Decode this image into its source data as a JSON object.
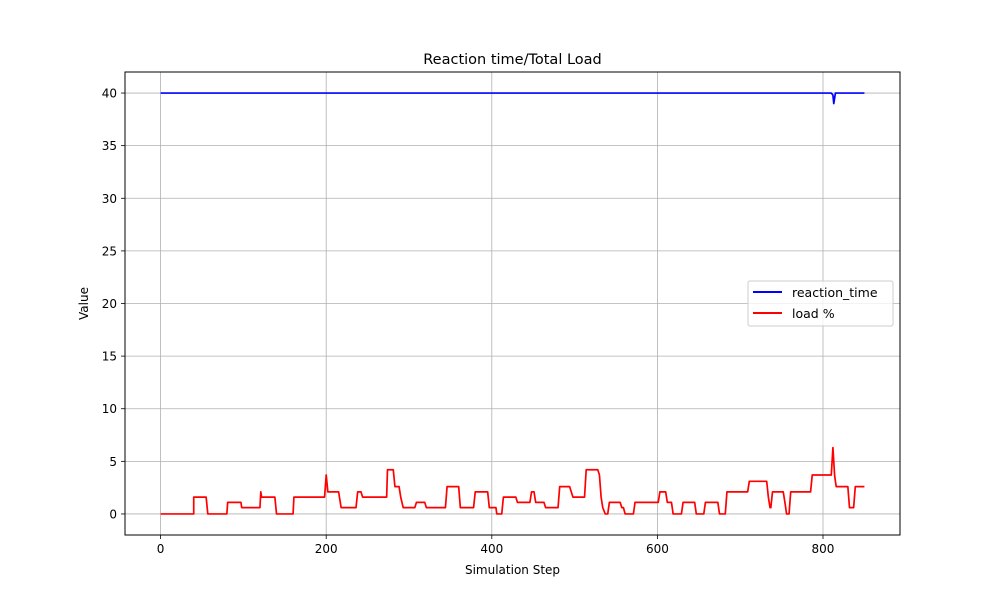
{
  "chart_data": {
    "type": "line",
    "title": "Reaction time/Total Load",
    "xlabel": "Simulation Step",
    "ylabel": "Value",
    "xlim": [
      -43,
      893
    ],
    "ylim": [
      -2,
      42
    ],
    "x_ticks": [
      0,
      200,
      400,
      600,
      800
    ],
    "y_ticks": [
      0,
      5,
      10,
      15,
      20,
      25,
      30,
      35,
      40
    ],
    "grid": true,
    "legend_position": "center-right",
    "series": [
      {
        "name": "reaction_time",
        "color": "#0000ff",
        "points": [
          [
            0,
            40
          ],
          [
            810,
            40
          ],
          [
            812,
            39.8
          ],
          [
            813,
            39
          ],
          [
            814,
            39.5
          ],
          [
            815,
            40
          ],
          [
            850,
            40
          ]
        ]
      },
      {
        "name": "load %",
        "color": "#ff0000",
        "points": [
          [
            0,
            0
          ],
          [
            40,
            0
          ],
          [
            40,
            1.6
          ],
          [
            55,
            1.6
          ],
          [
            57,
            0
          ],
          [
            80,
            0
          ],
          [
            81,
            1.1
          ],
          [
            97,
            1.1
          ],
          [
            98,
            0.6
          ],
          [
            120,
            0.6
          ],
          [
            121,
            2.1
          ],
          [
            122,
            1.6
          ],
          [
            138,
            1.6
          ],
          [
            140,
            0
          ],
          [
            160,
            0
          ],
          [
            161,
            1.6
          ],
          [
            198,
            1.6
          ],
          [
            200,
            3.7
          ],
          [
            202,
            2.1
          ],
          [
            215,
            2.1
          ],
          [
            217,
            1.1
          ],
          [
            218,
            0.6
          ],
          [
            236,
            0.6
          ],
          [
            238,
            2.1
          ],
          [
            242,
            2.1
          ],
          [
            244,
            1.6
          ],
          [
            273,
            1.6
          ],
          [
            274,
            4.2
          ],
          [
            281,
            4.2
          ],
          [
            283,
            2.6
          ],
          [
            288,
            2.6
          ],
          [
            290,
            1.6
          ],
          [
            293,
            0.6
          ],
          [
            307,
            0.6
          ],
          [
            309,
            1.1
          ],
          [
            319,
            1.1
          ],
          [
            321,
            0.6
          ],
          [
            344,
            0.6
          ],
          [
            346,
            2.6
          ],
          [
            360,
            2.6
          ],
          [
            362,
            0.6
          ],
          [
            378,
            0.6
          ],
          [
            380,
            2.1
          ],
          [
            395,
            2.1
          ],
          [
            397,
            0.6
          ],
          [
            405,
            0.6
          ],
          [
            406,
            0
          ],
          [
            412,
            0
          ],
          [
            414,
            1.6
          ],
          [
            429,
            1.6
          ],
          [
            431,
            1.1
          ],
          [
            446,
            1.1
          ],
          [
            448,
            2.1
          ],
          [
            451,
            2.1
          ],
          [
            453,
            1.1
          ],
          [
            463,
            1.1
          ],
          [
            465,
            0.6
          ],
          [
            480,
            0.6
          ],
          [
            482,
            2.6
          ],
          [
            494,
            2.6
          ],
          [
            496,
            2.1
          ],
          [
            498,
            1.6
          ],
          [
            512,
            1.6
          ],
          [
            514,
            4.2
          ],
          [
            528,
            4.2
          ],
          [
            530,
            3.7
          ],
          [
            532,
            1.6
          ],
          [
            534,
            0.6
          ],
          [
            537,
            0
          ],
          [
            540,
            0
          ],
          [
            542,
            1.1
          ],
          [
            555,
            1.1
          ],
          [
            557,
            0.6
          ],
          [
            559,
            0.6
          ],
          [
            561,
            0
          ],
          [
            571,
            0
          ],
          [
            573,
            1.1
          ],
          [
            601,
            1.1
          ],
          [
            603,
            2.1
          ],
          [
            610,
            2.1
          ],
          [
            612,
            1.1
          ],
          [
            617,
            1.1
          ],
          [
            619,
            0
          ],
          [
            629,
            0
          ],
          [
            631,
            1.1
          ],
          [
            645,
            1.1
          ],
          [
            647,
            0
          ],
          [
            656,
            0
          ],
          [
            658,
            1.1
          ],
          [
            673,
            1.1
          ],
          [
            675,
            0
          ],
          [
            682,
            0
          ],
          [
            684,
            2.1
          ],
          [
            709,
            2.1
          ],
          [
            711,
            3.1
          ],
          [
            732,
            3.1
          ],
          [
            734,
            1.6
          ],
          [
            736,
            0.6
          ],
          [
            737,
            0.6
          ],
          [
            739,
            2.1
          ],
          [
            752,
            2.1
          ],
          [
            754,
            1.1
          ],
          [
            756,
            0
          ],
          [
            759,
            0
          ],
          [
            761,
            2.1
          ],
          [
            785,
            2.1
          ],
          [
            787,
            3.7
          ],
          [
            810,
            3.7
          ],
          [
            812,
            6.3
          ],
          [
            814,
            3.7
          ],
          [
            815,
            3.1
          ],
          [
            816,
            2.6
          ],
          [
            830,
            2.6
          ],
          [
            832,
            0.6
          ],
          [
            837,
            0.6
          ],
          [
            839,
            2.6
          ],
          [
            850,
            2.6
          ]
        ]
      }
    ]
  }
}
